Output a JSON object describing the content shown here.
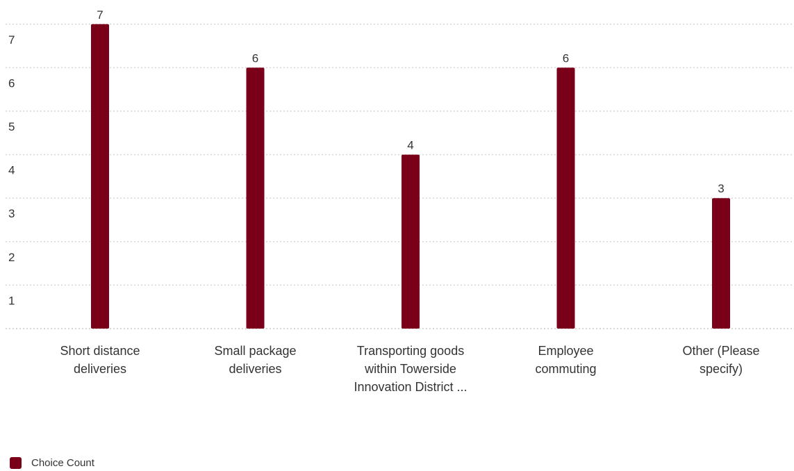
{
  "chart_data": {
    "type": "bar",
    "categories": [
      "Short distance deliveries",
      "Small package deliveries",
      "Transporting goods within Towerside Innovation District ...",
      "Employee commuting",
      "Other (Please specify)"
    ],
    "category_lines": [
      [
        "Short distance",
        "deliveries"
      ],
      [
        "Small package",
        "deliveries"
      ],
      [
        "Transporting goods",
        "within Towerside",
        "Innovation District ..."
      ],
      [
        "Employee",
        "commuting"
      ],
      [
        "Other (Please",
        "specify)"
      ]
    ],
    "series": [
      {
        "name": "Choice Count",
        "values": [
          7,
          6,
          4,
          6,
          3
        ],
        "color": "#7a0019"
      }
    ],
    "y_ticks": [
      1,
      2,
      3,
      4,
      5,
      6,
      7
    ],
    "ylim": [
      0,
      7.5
    ],
    "grid": true,
    "grid_style": "dotted",
    "data_labels": true,
    "legend_position": "bottom-left",
    "title": "",
    "xlabel": "",
    "ylabel": ""
  }
}
